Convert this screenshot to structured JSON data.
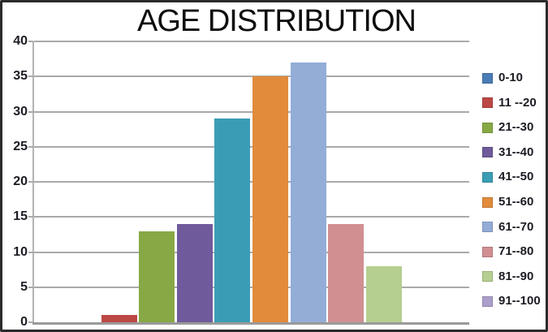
{
  "chart_data": {
    "type": "bar",
    "title": "AGE DISTRIBUTION",
    "categories": [
      "0-10",
      "11 --20",
      "21--30",
      "31--40",
      "41--50",
      "51--60",
      "61--70",
      "71--80",
      "81--90",
      "91--100"
    ],
    "values": [
      0,
      1,
      13,
      14,
      29,
      35,
      37,
      14,
      8,
      0
    ],
    "colors": [
      "#4A7CB5",
      "#BC4845",
      "#87A845",
      "#6F5A9B",
      "#3B9DB5",
      "#E18B3B",
      "#93ADD7",
      "#D18F92",
      "#B5CF90",
      "#AB9EC9"
    ],
    "xlabel": "",
    "ylabel": "",
    "ylim": [
      0,
      40
    ],
    "yticks": [
      0,
      5,
      10,
      15,
      20,
      25,
      30,
      35,
      40
    ],
    "grid": "horizontal",
    "legend_position": "right"
  },
  "palette": {
    "gridline": "#a9a9a9",
    "axis_line": "#9a9a9a",
    "text": "#1c1c24",
    "title_text": "#0d0d0d",
    "background": "#ffffff",
    "border": "#2b2b2b"
  }
}
